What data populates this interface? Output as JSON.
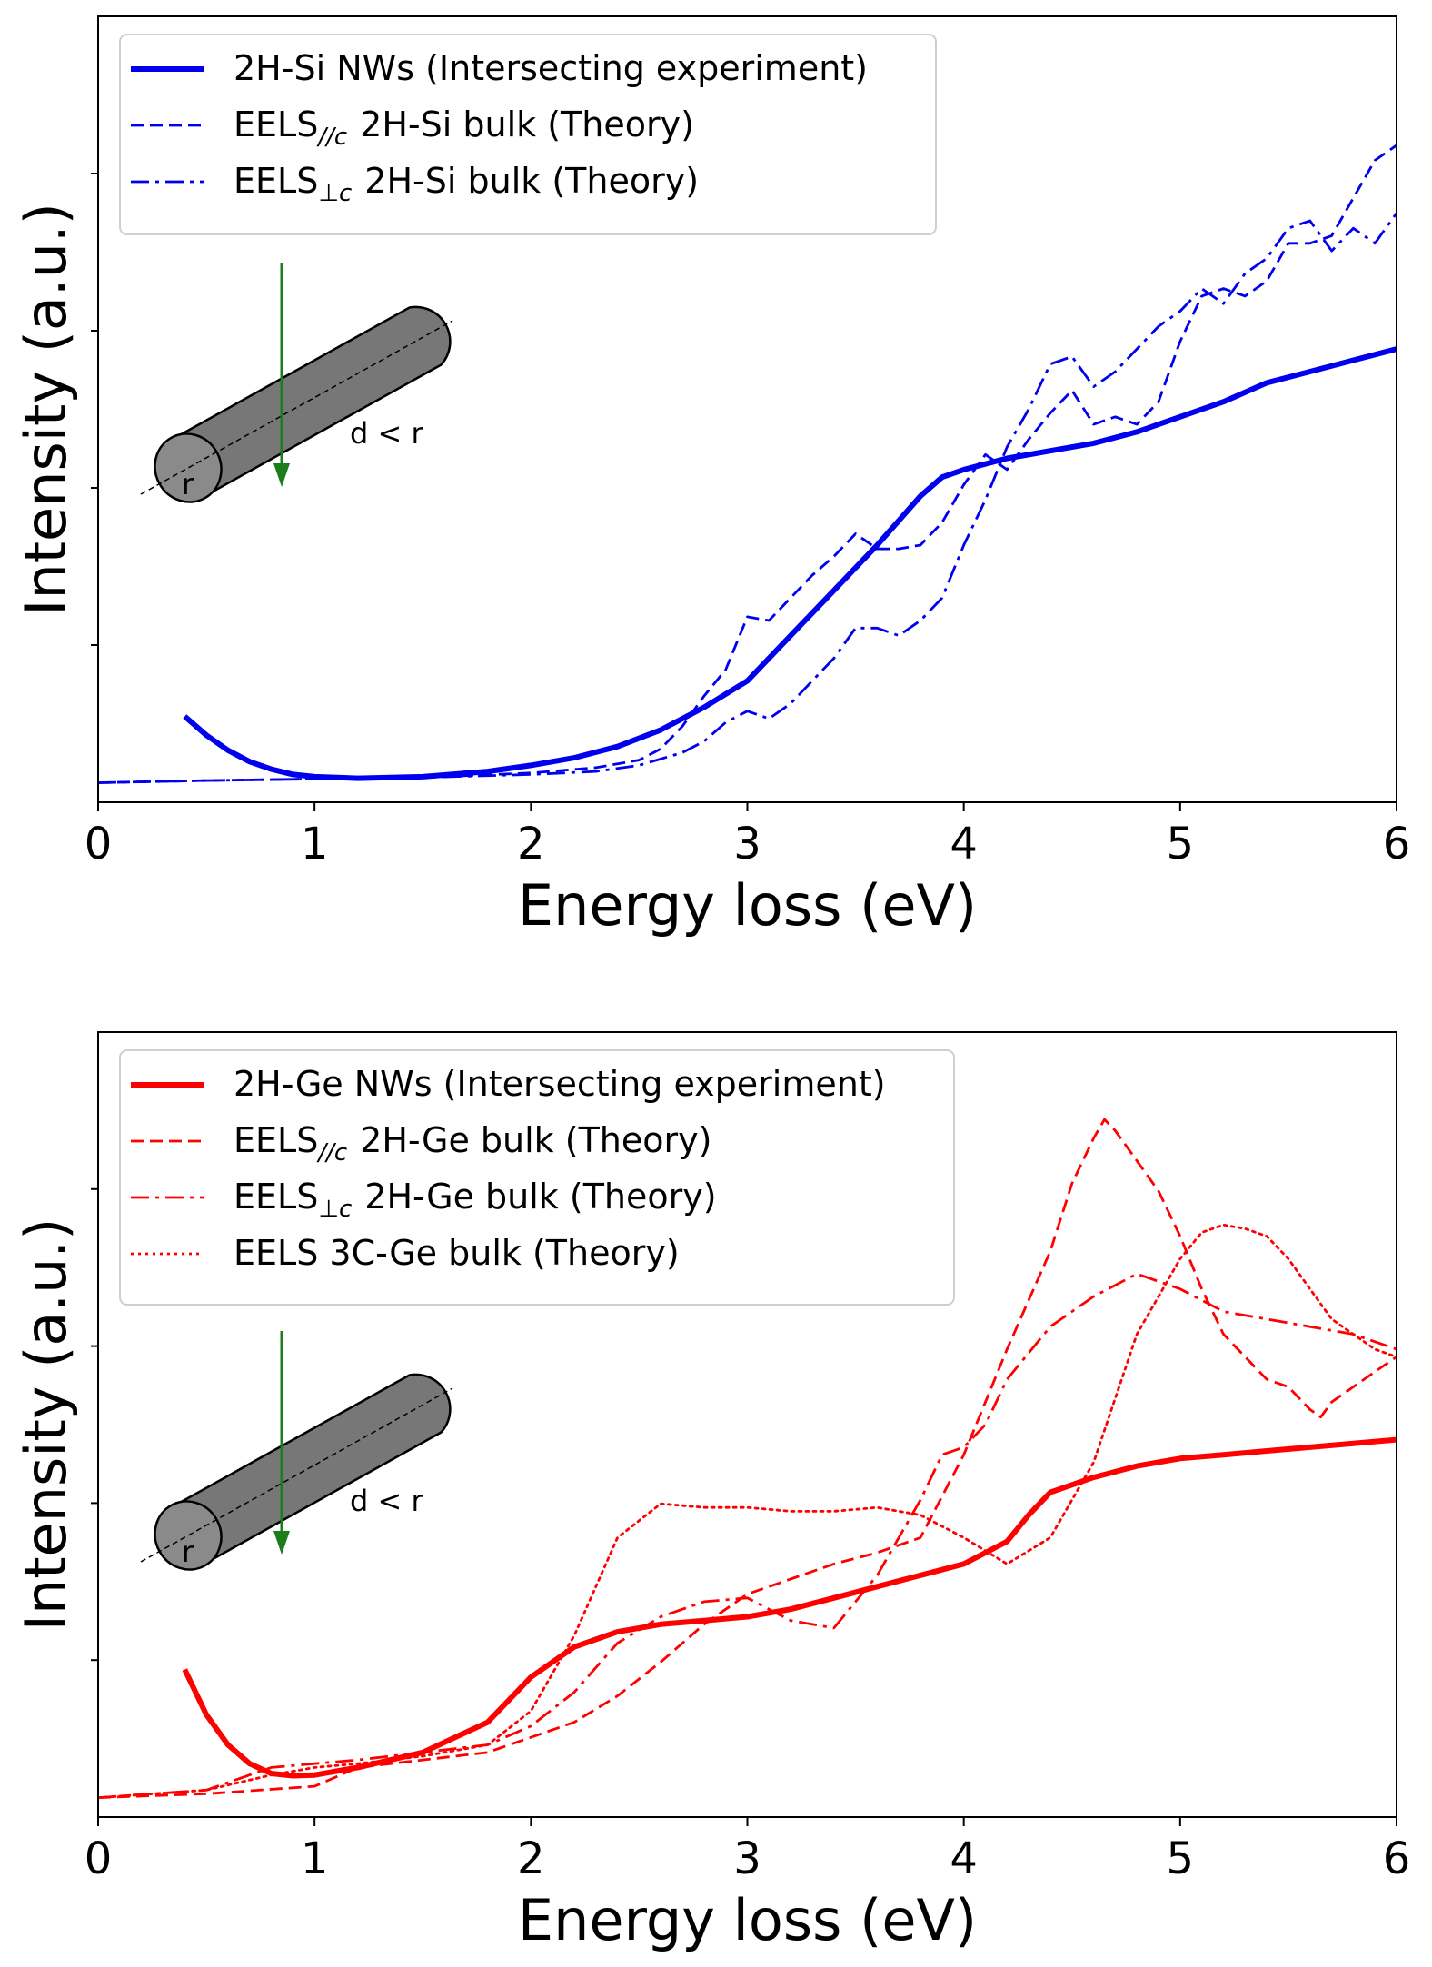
{
  "chart_data": [
    {
      "type": "line",
      "xlabel": "Energy loss (eV)",
      "ylabel": "Intensity (a.u.)",
      "xlim": [
        0,
        6
      ],
      "ylim": [
        0,
        100
      ],
      "xticks": [
        "0",
        "1",
        "2",
        "3",
        "4",
        "5",
        "6"
      ],
      "legend_position": "top-left",
      "inset": {
        "label_d": "d < r",
        "label_r": "r"
      },
      "series": [
        {
          "name": "2H-Si NWs (Intersecting experiment)",
          "legend_main": "2H-Si NWs (Intersecting experiment)",
          "style": "solid",
          "color": "#0000ee",
          "x": [
            0.4,
            0.5,
            0.6,
            0.7,
            0.8,
            0.9,
            1.0,
            1.2,
            1.5,
            1.8,
            2.0,
            2.2,
            2.4,
            2.6,
            2.8,
            3.0,
            3.2,
            3.4,
            3.6,
            3.8,
            3.9,
            4.0,
            4.2,
            4.4,
            4.6,
            4.8,
            5.0,
            5.2,
            5.4,
            5.6,
            5.8,
            6.0
          ],
          "y": [
            9.3,
            6.8,
            4.8,
            3.3,
            2.3,
            1.6,
            1.3,
            1.1,
            1.3,
            2.0,
            2.8,
            3.8,
            5.3,
            7.5,
            10.5,
            14.0,
            20.0,
            26.0,
            32.0,
            38.5,
            41.0,
            42.0,
            43.5,
            44.5,
            45.5,
            47.0,
            49.0,
            51.0,
            53.5,
            55.0,
            56.5,
            58.0
          ]
        },
        {
          "name": "EELS//c 2H-Si bulk (Theory)",
          "legend_main": "EELS",
          "legend_sub": "//c",
          "legend_rest": "2H-Si bulk (Theory)",
          "style": "dashed",
          "color": "#0000ee",
          "x": [
            0,
            0.5,
            1.0,
            1.5,
            2.0,
            2.3,
            2.5,
            2.6,
            2.7,
            2.8,
            2.9,
            3.0,
            3.1,
            3.2,
            3.3,
            3.4,
            3.5,
            3.6,
            3.7,
            3.8,
            3.9,
            4.0,
            4.1,
            4.2,
            4.3,
            4.4,
            4.5,
            4.6,
            4.7,
            4.8,
            4.9,
            5.0,
            5.1,
            5.2,
            5.3,
            5.4,
            5.5,
            5.6,
            5.7,
            5.8,
            5.9,
            6.0
          ],
          "y": [
            0.5,
            0.8,
            1.0,
            1.2,
            1.8,
            2.5,
            3.5,
            5.0,
            8.0,
            12.0,
            15.5,
            22.5,
            22.0,
            25.0,
            28.0,
            30.5,
            33.5,
            31.5,
            31.5,
            32.0,
            35.0,
            40.0,
            44.0,
            42.0,
            46.0,
            49.5,
            52.5,
            48.0,
            49.0,
            48.0,
            51.0,
            59.0,
            65.0,
            66.0,
            65.0,
            67.0,
            72.0,
            72.0,
            73.0,
            78.0,
            83.0,
            85.0
          ]
        },
        {
          "name": "EELS⊥c 2H-Si bulk (Theory)",
          "legend_main": "EELS",
          "legend_sub": "⊥c",
          "legend_rest": "2H-Si bulk (Theory)",
          "style": "dashdot",
          "color": "#0000ee",
          "x": [
            0,
            0.5,
            1.0,
            1.5,
            2.0,
            2.3,
            2.5,
            2.7,
            2.8,
            2.9,
            3.0,
            3.1,
            3.2,
            3.3,
            3.4,
            3.5,
            3.6,
            3.7,
            3.8,
            3.9,
            4.0,
            4.1,
            4.2,
            4.3,
            4.4,
            4.5,
            4.6,
            4.7,
            4.8,
            4.9,
            5.0,
            5.1,
            5.2,
            5.3,
            5.4,
            5.5,
            5.6,
            5.7,
            5.8,
            5.9,
            6.0
          ],
          "y": [
            0.5,
            0.8,
            1.0,
            1.2,
            1.6,
            2.0,
            2.8,
            4.5,
            6.0,
            8.5,
            10.0,
            9.0,
            11.0,
            14.0,
            17.0,
            21.0,
            21.0,
            20.0,
            22.0,
            25.0,
            32.0,
            38.0,
            45.0,
            50.0,
            56.0,
            57.0,
            53.0,
            55.0,
            58.0,
            61.0,
            63.0,
            66.0,
            64.0,
            68.0,
            70.0,
            74.0,
            75.0,
            71.0,
            74.0,
            72.0,
            76.0
          ]
        }
      ]
    },
    {
      "type": "line",
      "xlabel": "Energy loss (eV)",
      "ylabel": "Intensity (a.u.)",
      "xlim": [
        0,
        6
      ],
      "ylim": [
        0,
        100
      ],
      "xticks": [
        "0",
        "1",
        "2",
        "3",
        "4",
        "5",
        "6"
      ],
      "legend_position": "top-left",
      "inset": {
        "label_d": "d < r",
        "label_r": "r"
      },
      "series": [
        {
          "name": "2H-Ge NWs (Intersecting experiment)",
          "legend_main": "2H-Ge NWs (Intersecting experiment)",
          "style": "solid",
          "color": "#ff0000",
          "x": [
            0.4,
            0.5,
            0.6,
            0.7,
            0.8,
            0.9,
            1.0,
            1.2,
            1.5,
            1.8,
            2.0,
            2.2,
            2.4,
            2.6,
            2.8,
            3.0,
            3.2,
            3.4,
            3.6,
            3.8,
            4.0,
            4.2,
            4.3,
            4.4,
            4.6,
            4.8,
            5.0,
            5.2,
            5.4,
            5.6,
            5.8,
            6.0
          ],
          "y": [
            17.5,
            11.5,
            7.5,
            5.0,
            3.7,
            3.4,
            3.5,
            4.5,
            6.5,
            10.5,
            16.5,
            20.5,
            22.5,
            23.5,
            24.0,
            24.5,
            25.5,
            27.0,
            28.5,
            30.0,
            31.5,
            34.5,
            38.0,
            41.0,
            43.0,
            44.5,
            45.5,
            46.0,
            46.5,
            47.0,
            47.5,
            48.0
          ]
        },
        {
          "name": "EELS//c 2H-Ge bulk (Theory)",
          "legend_main": "EELS",
          "legend_sub": "//c",
          "legend_rest": "2H-Ge bulk (Theory)",
          "style": "dashed",
          "color": "#ff0000",
          "x": [
            0,
            0.5,
            1.0,
            1.2,
            1.5,
            1.8,
            2.0,
            2.2,
            2.4,
            2.6,
            2.8,
            3.0,
            3.2,
            3.4,
            3.6,
            3.8,
            4.0,
            4.2,
            4.4,
            4.5,
            4.6,
            4.65,
            4.7,
            4.8,
            4.9,
            5.0,
            5.1,
            5.2,
            5.3,
            5.4,
            5.5,
            5.6,
            5.65,
            5.7,
            5.8,
            5.9,
            6.0
          ],
          "y": [
            0.5,
            1.0,
            2.0,
            4.5,
            5.5,
            6.5,
            8.5,
            10.5,
            14.0,
            18.5,
            23.5,
            27.5,
            29.5,
            31.5,
            33.0,
            35.0,
            46.0,
            60.0,
            73.0,
            82.0,
            88.0,
            90.5,
            89.0,
            85.0,
            81.0,
            75.0,
            68.0,
            62.0,
            59.0,
            56.0,
            55.0,
            52.0,
            51.0,
            53.0,
            55.0,
            57.0,
            59.0
          ]
        },
        {
          "name": "EELS⊥c 2H-Ge bulk (Theory)",
          "legend_main": "EELS",
          "legend_sub": "⊥c",
          "legend_rest": "2H-Ge bulk (Theory)",
          "style": "dashdot",
          "color": "#ff0000",
          "x": [
            0,
            0.5,
            0.8,
            1.0,
            1.2,
            1.5,
            1.8,
            2.0,
            2.2,
            2.4,
            2.6,
            2.8,
            3.0,
            3.2,
            3.4,
            3.6,
            3.8,
            3.9,
            4.0,
            4.1,
            4.2,
            4.4,
            4.6,
            4.8,
            5.0,
            5.2,
            5.4,
            5.6,
            5.8,
            6.0
          ],
          "y": [
            0.5,
            1.5,
            4.5,
            5.0,
            5.5,
            6.5,
            7.5,
            10.0,
            14.5,
            21.0,
            24.5,
            26.5,
            27.0,
            24.0,
            23.0,
            30.0,
            40.0,
            46.0,
            47.0,
            50.0,
            56.0,
            63.0,
            67.0,
            70.0,
            68.0,
            65.0,
            64.0,
            63.0,
            62.0,
            60.0
          ]
        },
        {
          "name": "EELS 3C-Ge bulk (Theory)",
          "legend_main": "EELS 3C-Ge bulk (Theory)",
          "style": "dotted",
          "color": "#ff0000",
          "x": [
            0,
            0.5,
            0.8,
            1.0,
            1.2,
            1.5,
            1.8,
            2.0,
            2.2,
            2.4,
            2.6,
            2.8,
            3.0,
            3.2,
            3.4,
            3.6,
            3.8,
            4.0,
            4.2,
            4.4,
            4.6,
            4.8,
            5.0,
            5.1,
            5.2,
            5.3,
            5.4,
            5.5,
            5.6,
            5.7,
            5.8,
            5.9,
            6.0
          ],
          "y": [
            0.5,
            1.5,
            3.5,
            4.5,
            5.0,
            6.0,
            7.5,
            12.0,
            22.0,
            35.0,
            39.5,
            39.0,
            39.0,
            38.5,
            38.5,
            39.0,
            38.0,
            35.0,
            31.5,
            35.0,
            45.0,
            62.0,
            72.0,
            75.5,
            76.5,
            76.0,
            75.0,
            72.0,
            68.0,
            64.0,
            62.0,
            60.0,
            59.0
          ]
        }
      ]
    }
  ]
}
